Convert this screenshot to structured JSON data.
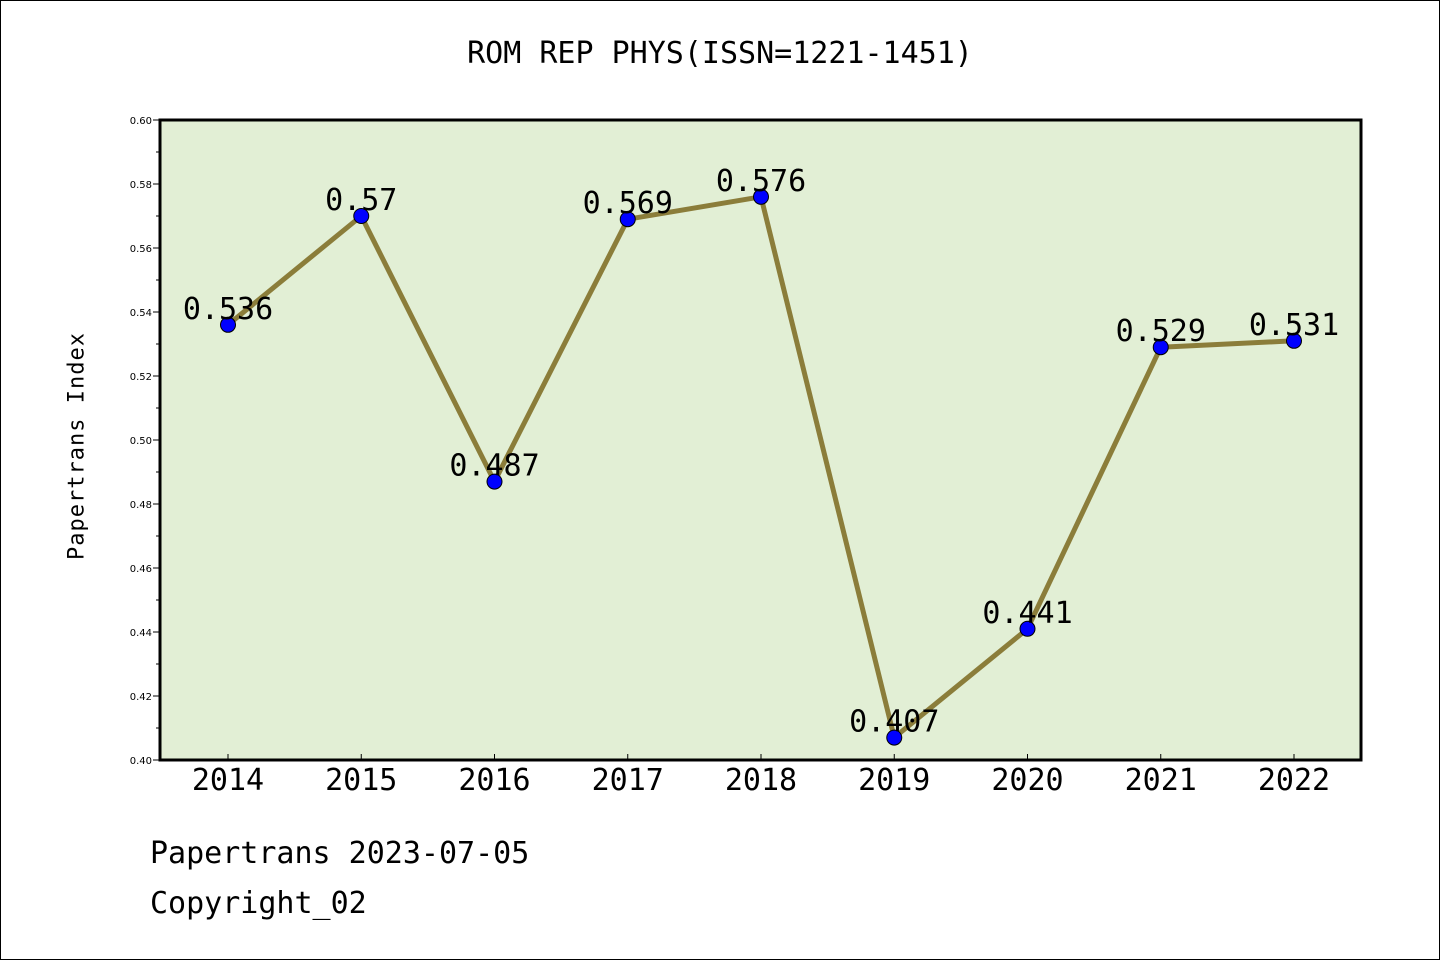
{
  "title": "ROM REP PHYS(ISSN=1221-1451)",
  "footer": {
    "line1": "Papertrans 2023-07-05",
    "line2": "Copyright_02"
  },
  "colors": {
    "plot_bg": "#e2efd5",
    "line": "#8b7d3a",
    "marker": "#0000ff"
  },
  "chart_data": {
    "type": "line",
    "title": "ROM REP PHYS(ISSN=1221-1451)",
    "xlabel": "",
    "ylabel": "Papertrans Index",
    "categories": [
      "2014",
      "2015",
      "2016",
      "2017",
      "2018",
      "2019",
      "2020",
      "2021",
      "2022"
    ],
    "values": [
      0.536,
      0.57,
      0.487,
      0.569,
      0.576,
      0.407,
      0.441,
      0.529,
      0.531
    ],
    "data_labels": [
      "0.536",
      "0.57",
      "0.487",
      "0.569",
      "0.576",
      "0.407",
      "0.441",
      "0.529",
      "0.531"
    ],
    "ylim": [
      0.4,
      0.6
    ],
    "yticks": [
      "0.40",
      "0.42",
      "0.44",
      "0.46",
      "0.48",
      "0.50",
      "0.52",
      "0.54",
      "0.56",
      "0.58",
      "0.60"
    ],
    "grid": false,
    "legend": "none"
  }
}
